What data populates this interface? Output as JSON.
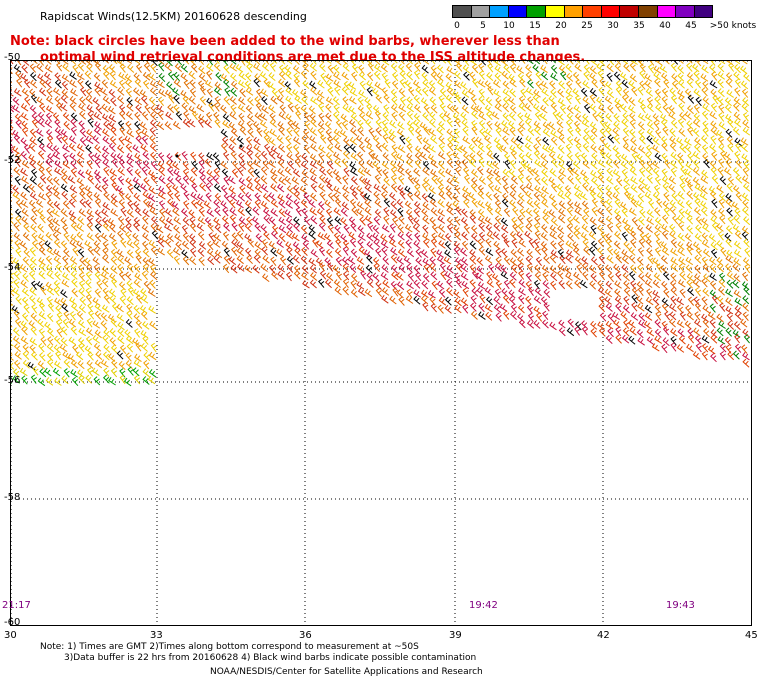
{
  "title": "Rapidscat Winds(12.5KM) 20160628 descending",
  "notice": {
    "line1": "Note: black circles have been added to the wind barbs, wherever less than",
    "line2": "optimal wind retrieval conditions are met due to the ISS altitude changes."
  },
  "speed_scale": {
    "unit_label": ">50 knots",
    "labels": [
      "0",
      "5",
      "10",
      "15",
      "20",
      "25",
      "30",
      "35",
      "40",
      "45"
    ],
    "colors": [
      "#505050",
      "#a0a0a0",
      "#00a0ff",
      "#0000ff",
      "#00a000",
      "#ffff00",
      "#ffa000",
      "#ff4000",
      "#ff0000",
      "#c00000",
      "#804000",
      "#ff00ff",
      "#8000c0",
      "#400080"
    ]
  },
  "map": {
    "latitudes": [
      "-50",
      "-52",
      "-54",
      "-56",
      "-58",
      "-60"
    ],
    "longitudes": [
      "30",
      "33",
      "36",
      "39",
      "42",
      "45"
    ],
    "times": [
      "21:17",
      "19:42",
      "19:43"
    ]
  },
  "footer": {
    "line1": "Note: 1) Times are GMT 2)Times along bottom correspond to measurement at ~50S",
    "line2": "3)Data buffer is 22 hrs from 20160628 4) Black wind barbs indicate possible contamination",
    "line3": "NOAA/NESDIS/Center for Satellite Applications and Research"
  }
}
